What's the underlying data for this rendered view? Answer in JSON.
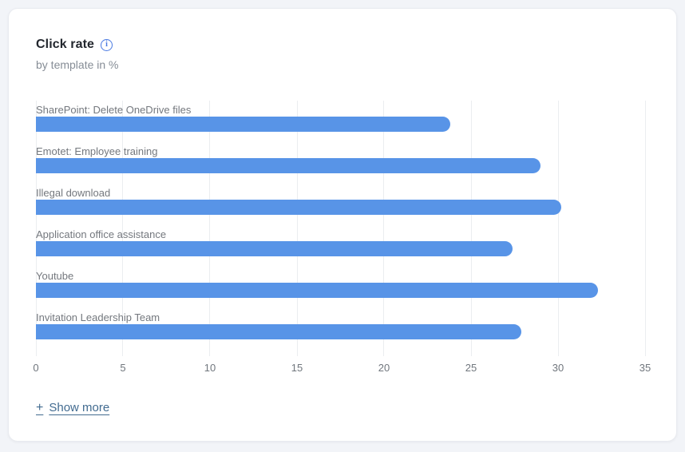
{
  "card": {
    "title": "Click rate",
    "subtitle": "by template in %",
    "info_icon_glyph": "i",
    "show_more": {
      "plus_glyph": "+",
      "label": "Show more"
    }
  },
  "colors": {
    "page_background": "#f2f4f8",
    "card_background": "#ffffff",
    "bar": "#5894e7",
    "gridline": "#ebedf0",
    "info_accent": "#4a7ae2",
    "show_more_text": "#426b90"
  },
  "chart_data": {
    "type": "bar",
    "orientation": "horizontal",
    "title": "Click rate",
    "subtitle": "by template in %",
    "unit": "%",
    "categories": [
      "SharePoint: Delete OneDrive files",
      "Emotet: Employee training",
      "Illegal download",
      "Application office assistance",
      "Youtube",
      "Invitation Leadership Team"
    ],
    "values": [
      23.8,
      29.0,
      30.2,
      27.4,
      32.3,
      27.9
    ],
    "xlim": [
      0,
      35
    ],
    "x_ticks": [
      0,
      5,
      10,
      15,
      20,
      25,
      30,
      35
    ],
    "grid": "vertical",
    "legend": "none",
    "xlabel": "",
    "ylabel": ""
  }
}
